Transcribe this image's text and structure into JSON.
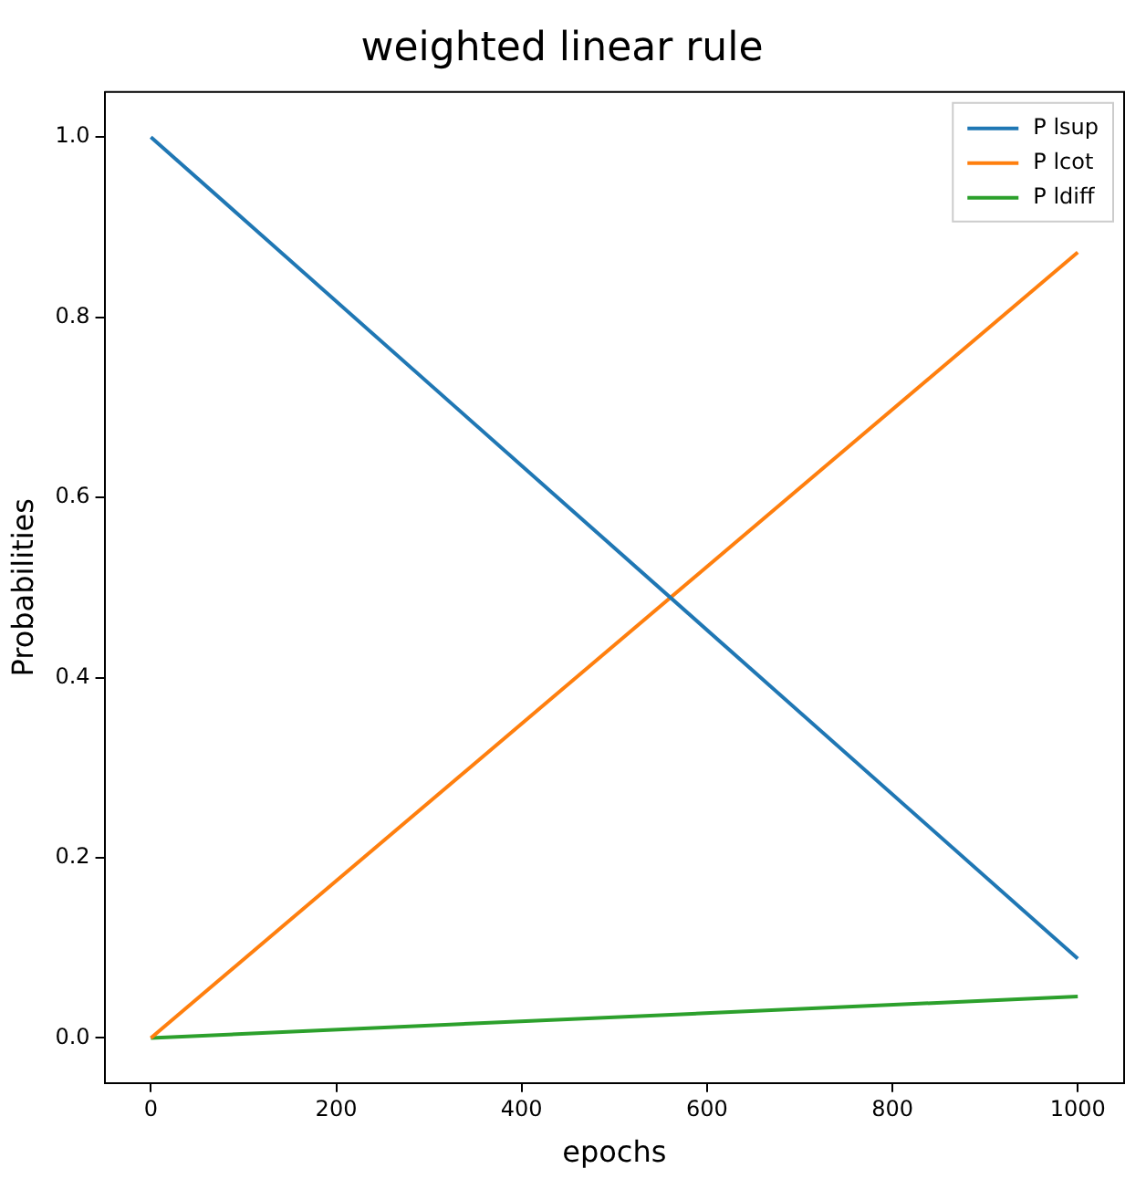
{
  "chart_data": {
    "type": "line",
    "title": "weighted linear rule",
    "xlabel": "epochs",
    "ylabel": "Probabilities",
    "x": [
      0,
      1000
    ],
    "series": [
      {
        "name": "P lsup",
        "color": "#1f77b4",
        "values": [
          1.0,
          0.088
        ]
      },
      {
        "name": "P lcot",
        "color": "#ff7f0e",
        "values": [
          0.0,
          0.872
        ]
      },
      {
        "name": "P ldiff",
        "color": "#2ca02c",
        "values": [
          0.0,
          0.046
        ]
      }
    ],
    "xlim": [
      -50,
      1050
    ],
    "xticks": [
      0,
      200,
      400,
      600,
      800,
      1000
    ],
    "ylim": [
      -0.05,
      1.05
    ],
    "yticks": [
      {
        "value": 0,
        "label": "0.0"
      },
      {
        "value": 0.2,
        "label": "0.2"
      },
      {
        "value": 0.4,
        "label": "0.4"
      },
      {
        "value": 0.6,
        "label": "0.6"
      },
      {
        "value": 0.8,
        "label": "0.8"
      },
      {
        "value": 1,
        "label": "1.0"
      }
    ],
    "grid": false,
    "legend": "top right",
    "marker": "none",
    "line_style": "solid"
  }
}
